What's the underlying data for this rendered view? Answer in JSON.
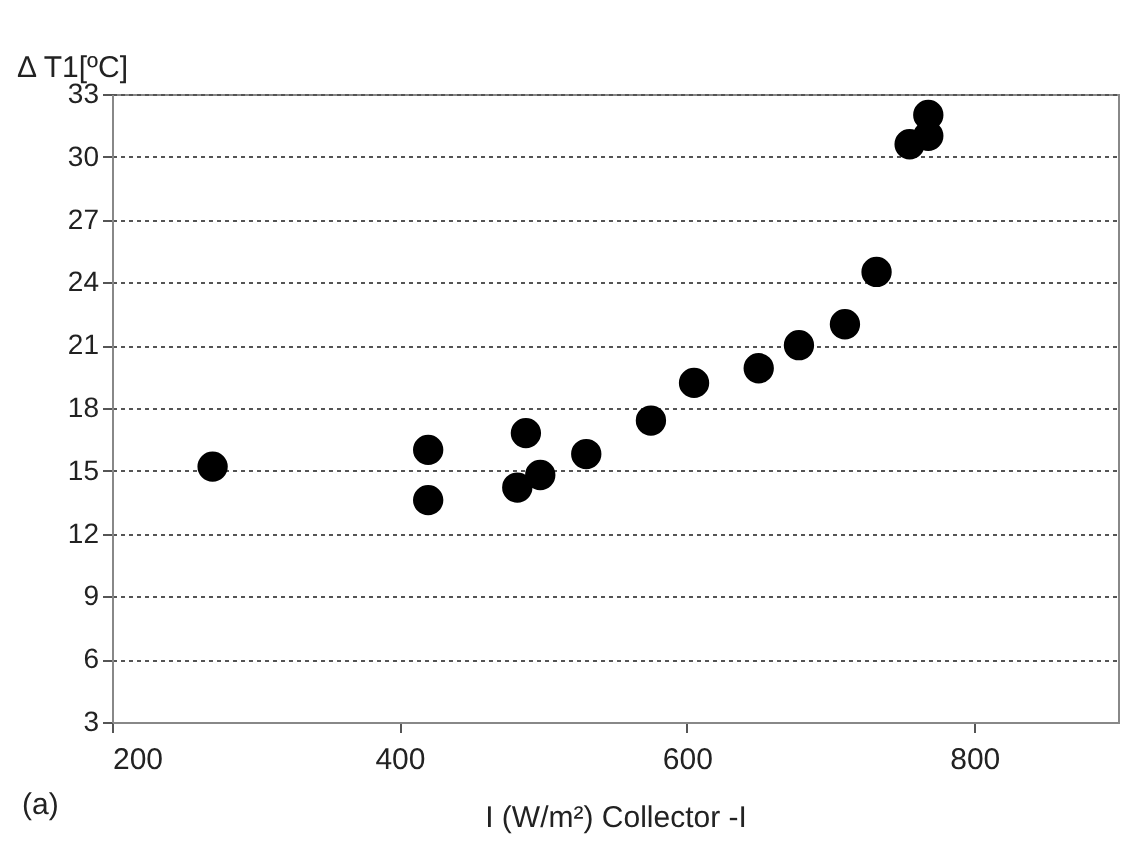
{
  "chart_data": {
    "type": "scatter",
    "xlabel": "I (W/m²) Collector -I",
    "ylabel": "Δ T1[ºC]",
    "x": [
      270,
      420,
      420,
      482,
      488,
      498,
      530,
      575,
      605,
      650,
      678,
      710,
      732,
      755,
      768,
      768
    ],
    "series": [
      {
        "color": "#000000",
        "values": [
          15.2,
          16,
          13.6,
          14.2,
          16.8,
          14.8,
          15.8,
          17.4,
          19.2,
          19.9,
          21,
          22,
          24.5,
          30.6,
          31,
          32
        ]
      }
    ],
    "xlim": [
      200,
      900
    ],
    "xticks": [
      200,
      400,
      600,
      800
    ],
    "ylim": [
      3,
      33
    ],
    "yticks": [
      3,
      6,
      9,
      12,
      15,
      18,
      21,
      24,
      27,
      30,
      33
    ],
    "grid": "y",
    "marker": "circle",
    "annotations": [
      "(a)"
    ]
  }
}
